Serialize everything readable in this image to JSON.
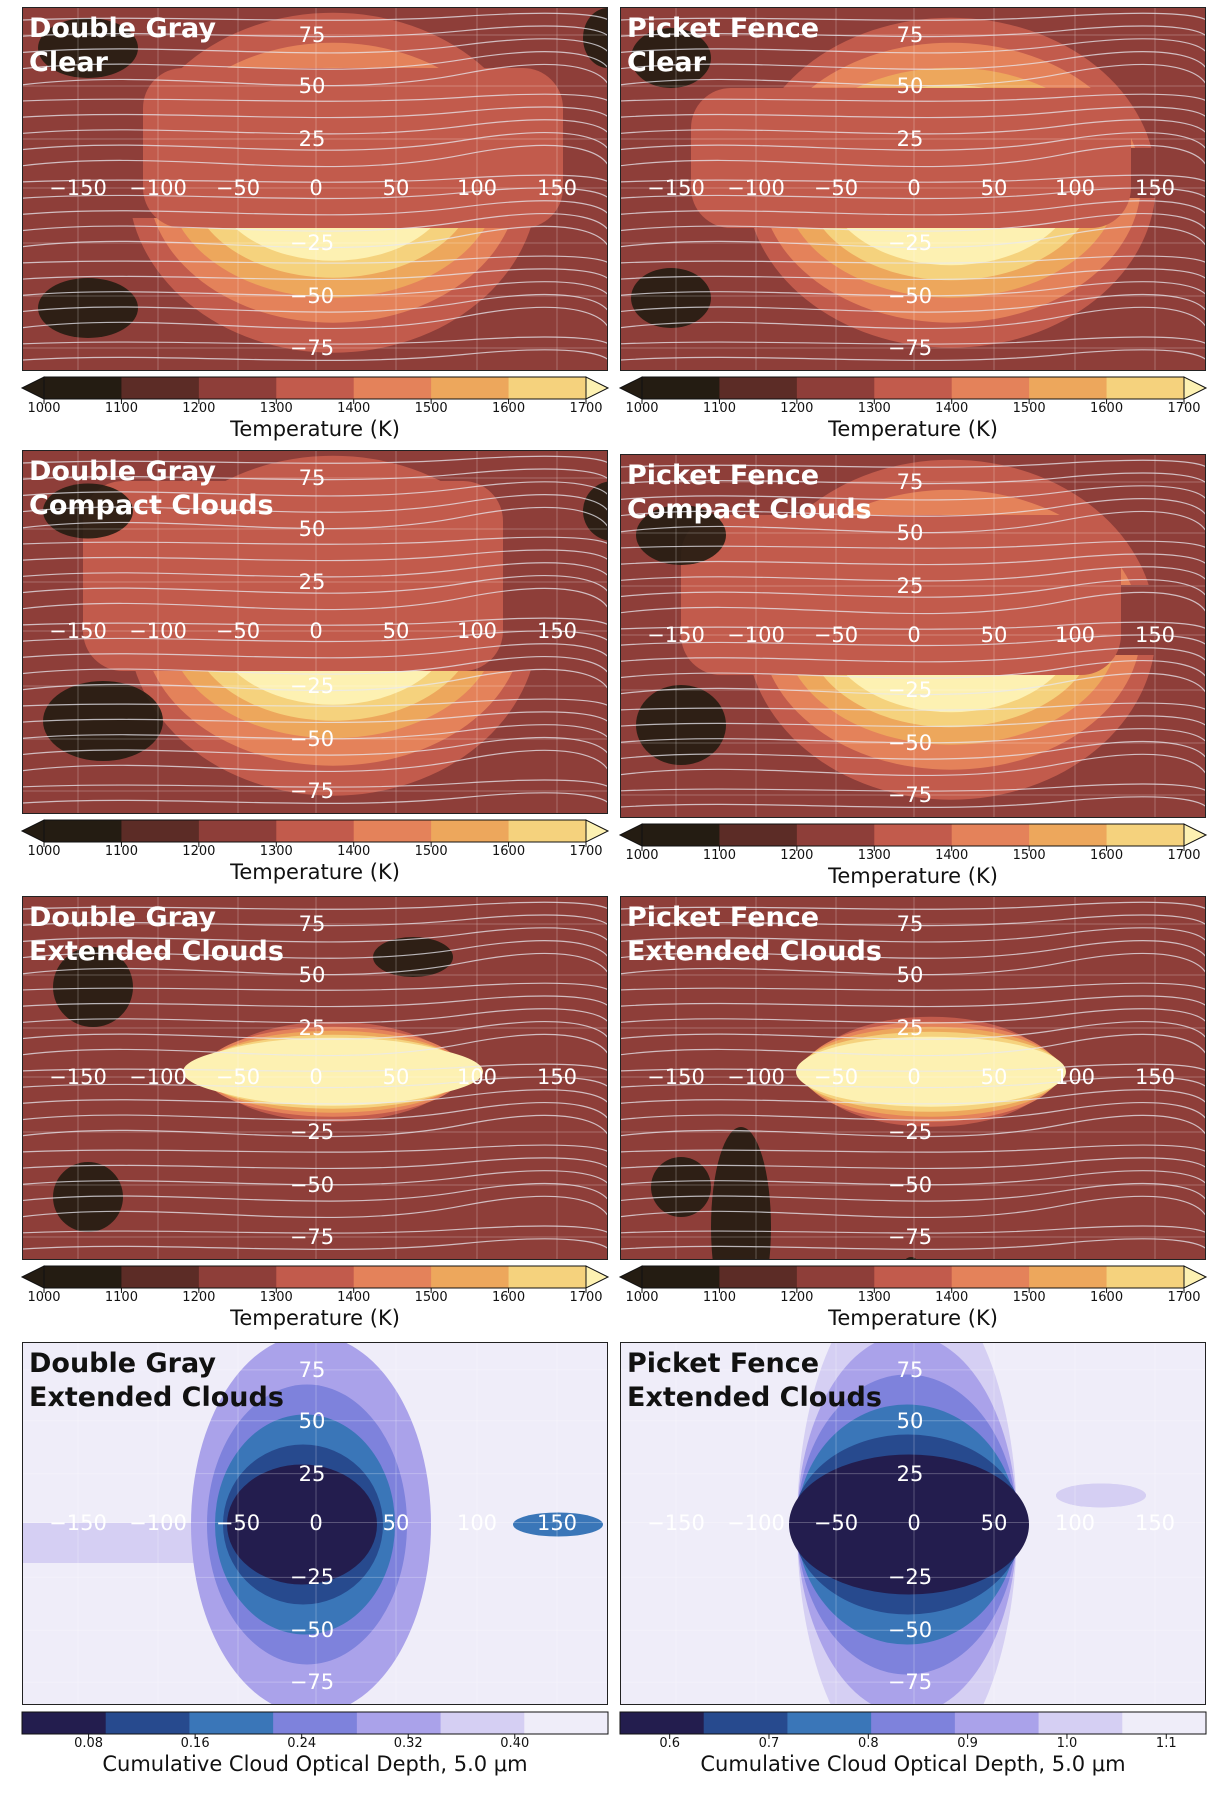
{
  "colors": {
    "temperature": [
      "#241c12",
      "#5c2c26",
      "#8e3e39",
      "#c25b4c",
      "#e4825a",
      "#eda75c",
      "#f5d27d",
      "#fdf1b2"
    ],
    "temperature_under": "#241c12",
    "temperature_over": "#fdf1b2",
    "depth": [
      "#231d4e",
      "#274a8e",
      "#3a76b8",
      "#7e82dc",
      "#aaa2ea",
      "#d5cff3",
      "#efedf9"
    ]
  },
  "chart_data": [
    {
      "type": "heatmap",
      "title": "Double Gray\nClear",
      "xticks": [
        -150,
        -100,
        -50,
        0,
        50,
        100,
        150
      ],
      "yticks": [
        75,
        50,
        25,
        0,
        -25,
        -50,
        -75
      ],
      "xlim": [
        -180,
        180
      ],
      "ylim": [
        -90,
        90
      ],
      "streamlines": true,
      "colorbar": {
        "label": "Temperature (K)",
        "ticks": [
          "1000",
          "1100",
          "1200",
          "1300",
          "1400",
          "1500",
          "1600",
          "1700"
        ],
        "range": [
          1000,
          1700
        ],
        "extend": "both"
      }
    },
    {
      "type": "heatmap",
      "title": "Picket Fence\nClear",
      "xticks": [
        -150,
        -100,
        -50,
        0,
        50,
        100,
        150
      ],
      "yticks": [
        75,
        50,
        25,
        0,
        -25,
        -50,
        -75
      ],
      "xlim": [
        -180,
        180
      ],
      "ylim": [
        -90,
        90
      ],
      "streamlines": true,
      "colorbar": {
        "label": "Temperature (K)",
        "ticks": [
          "1000",
          "1100",
          "1200",
          "1300",
          "1400",
          "1500",
          "1600",
          "1700"
        ],
        "range": [
          1000,
          1700
        ],
        "extend": "both"
      }
    },
    {
      "type": "heatmap",
      "title": "Double Gray\nCompact Clouds",
      "xticks": [
        -150,
        -100,
        -50,
        0,
        50,
        100,
        150
      ],
      "yticks": [
        75,
        50,
        25,
        0,
        -25,
        -50,
        -75
      ],
      "xlim": [
        -180,
        180
      ],
      "ylim": [
        -90,
        90
      ],
      "streamlines": true,
      "colorbar": {
        "label": "Temperature (K)",
        "ticks": [
          "1000",
          "1100",
          "1200",
          "1300",
          "1400",
          "1500",
          "1600",
          "1700"
        ],
        "range": [
          1000,
          1700
        ],
        "extend": "both"
      }
    },
    {
      "type": "heatmap",
      "title": "Picket Fence\nCompact Clouds",
      "xticks": [
        -150,
        -100,
        -50,
        0,
        50,
        100,
        150
      ],
      "yticks": [
        75,
        50,
        25,
        0,
        -25,
        -50,
        -75
      ],
      "xlim": [
        -180,
        180
      ],
      "ylim": [
        -90,
        90
      ],
      "streamlines": true,
      "colorbar": {
        "label": "Temperature (K)",
        "ticks": [
          "1000",
          "1100",
          "1200",
          "1300",
          "1400",
          "1500",
          "1600",
          "1700"
        ],
        "range": [
          1000,
          1700
        ],
        "extend": "both"
      }
    },
    {
      "type": "heatmap",
      "title": "Double Gray\nExtended Clouds",
      "xticks": [
        -150,
        -100,
        -50,
        0,
        50,
        100,
        150
      ],
      "yticks": [
        75,
        50,
        25,
        0,
        -25,
        -50,
        -75
      ],
      "xlim": [
        -180,
        180
      ],
      "ylim": [
        -90,
        90
      ],
      "streamlines": true,
      "colorbar": {
        "label": "Temperature (K)",
        "ticks": [
          "1000",
          "1100",
          "1200",
          "1300",
          "1400",
          "1500",
          "1600",
          "1700"
        ],
        "range": [
          1000,
          1700
        ],
        "extend": "both"
      }
    },
    {
      "type": "heatmap",
      "title": "Picket Fence\nExtended Clouds",
      "xticks": [
        -150,
        -100,
        -50,
        0,
        50,
        100,
        150
      ],
      "yticks": [
        75,
        50,
        25,
        0,
        -25,
        -50,
        -75
      ],
      "xlim": [
        -180,
        180
      ],
      "ylim": [
        -90,
        90
      ],
      "streamlines": true,
      "colorbar": {
        "label": "Temperature (K)",
        "ticks": [
          "1000",
          "1100",
          "1200",
          "1300",
          "1400",
          "1500",
          "1600",
          "1700"
        ],
        "range": [
          1000,
          1700
        ],
        "extend": "both"
      }
    },
    {
      "type": "heatmap",
      "title": "Double Gray\nExtended Clouds",
      "xticks": [
        -150,
        -100,
        -50,
        0,
        50,
        100,
        150
      ],
      "yticks": [
        75,
        50,
        25,
        0,
        -25,
        -50,
        -75
      ],
      "xlim": [
        -180,
        180
      ],
      "ylim": [
        -90,
        90
      ],
      "streamlines": false,
      "colorbar": {
        "label": "Cumulative Cloud Optical Depth, 5.0 μm",
        "ticks": [
          "0.08",
          "0.16",
          "0.24",
          "0.32",
          "0.40"
        ],
        "range": [
          0.03,
          0.47
        ],
        "extend": "none"
      }
    },
    {
      "type": "heatmap",
      "title": "Picket Fence\nExtended Clouds",
      "xticks": [
        -150,
        -100,
        -50,
        0,
        50,
        100,
        150
      ],
      "yticks": [
        75,
        50,
        25,
        0,
        -25,
        -50,
        -75
      ],
      "xlim": [
        -180,
        180
      ],
      "ylim": [
        -90,
        90
      ],
      "streamlines": false,
      "colorbar": {
        "label": "Cumulative Cloud Optical Depth, 5.0 μm",
        "ticks": [
          "0.6",
          "0.7",
          "0.8",
          "0.9",
          "1.0",
          "1.1"
        ],
        "range": [
          0.55,
          1.14
        ],
        "extend": "none"
      }
    }
  ]
}
